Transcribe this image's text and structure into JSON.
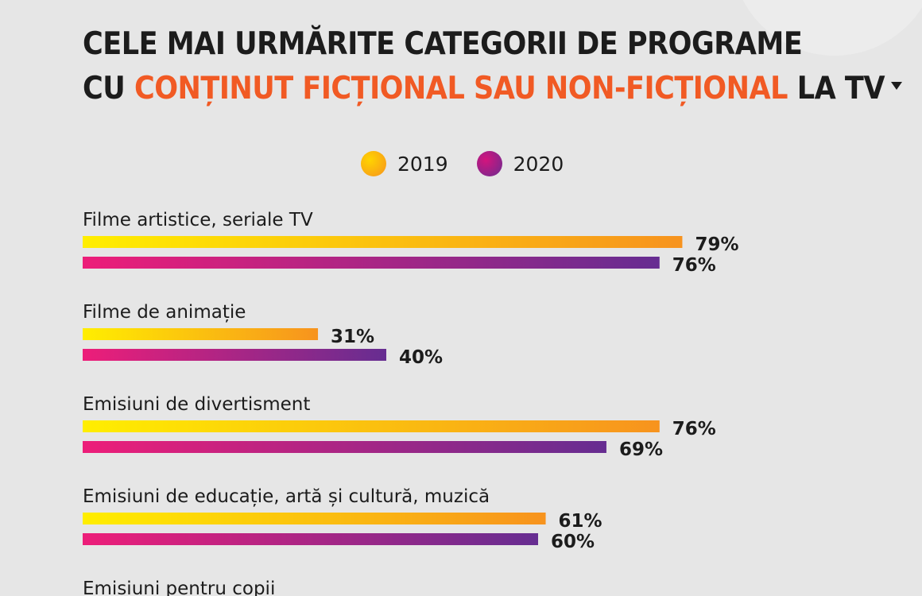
{
  "title": {
    "line1": "CELE MAI URMĂRITE CATEGORII DE PROGRAME",
    "line2_prefix": "CU ",
    "line2_highlight": "CONȚINUT FICȚIONAL SAU NON-FICȚIONAL",
    "line2_suffix": " LA TV"
  },
  "colors": {
    "accent": "#f15a24",
    "series_2019_start": "#ffee00",
    "series_2019_end": "#f7931e",
    "series_2020_start": "#ed1e79",
    "series_2020_end": "#662d91",
    "text": "#1c1c1c",
    "background": "#e6e6e6"
  },
  "legend": [
    {
      "label": "2019"
    },
    {
      "label": "2020"
    }
  ],
  "chart_data": {
    "type": "bar",
    "orientation": "horizontal",
    "title": "CELE MAI URMĂRITE CATEGORII DE PROGRAME CU CONȚINUT FICȚIONAL SAU NON-FICȚIONAL LA TV",
    "unit": "%",
    "xlim": [
      0,
      100
    ],
    "legend_position": "top-center",
    "grid": false,
    "categories": [
      "Filme artistice, seriale TV",
      "Filme de animație",
      "Emisiuni de divertisment",
      "Emisiuni de educație, artă și cultură, muzică",
      "Emisiuni pentru copii"
    ],
    "series": [
      {
        "name": "2019",
        "values": [
          79,
          31,
          76,
          61,
          null
        ]
      },
      {
        "name": "2020",
        "values": [
          76,
          40,
          69,
          60,
          null
        ]
      }
    ]
  }
}
